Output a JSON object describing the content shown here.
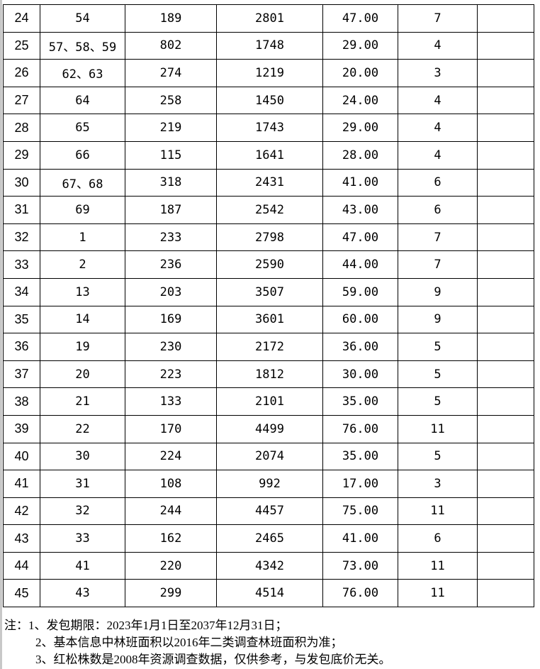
{
  "rows": [
    [
      "24",
      "54",
      "189",
      "2801",
      "47.00",
      "7",
      ""
    ],
    [
      "25",
      "57、58、59",
      "802",
      "1748",
      "29.00",
      "4",
      ""
    ],
    [
      "26",
      "62、63",
      "274",
      "1219",
      "20.00",
      "3",
      ""
    ],
    [
      "27",
      "64",
      "258",
      "1450",
      "24.00",
      "4",
      ""
    ],
    [
      "28",
      "65",
      "219",
      "1743",
      "29.00",
      "4",
      ""
    ],
    [
      "29",
      "66",
      "115",
      "1641",
      "28.00",
      "4",
      ""
    ],
    [
      "30",
      "67、68",
      "318",
      "2431",
      "41.00",
      "6",
      ""
    ],
    [
      "31",
      "69",
      "187",
      "2542",
      "43.00",
      "6",
      ""
    ],
    [
      "32",
      "1",
      "233",
      "2798",
      "47.00",
      "7",
      ""
    ],
    [
      "33",
      "2",
      "236",
      "2590",
      "44.00",
      "7",
      ""
    ],
    [
      "34",
      "13",
      "203",
      "3507",
      "59.00",
      "9",
      ""
    ],
    [
      "35",
      "14",
      "169",
      "3601",
      "60.00",
      "9",
      ""
    ],
    [
      "36",
      "19",
      "230",
      "2172",
      "36.00",
      "5",
      ""
    ],
    [
      "37",
      "20",
      "223",
      "1812",
      "30.00",
      "5",
      ""
    ],
    [
      "38",
      "21",
      "133",
      "2101",
      "35.00",
      "5",
      ""
    ],
    [
      "39",
      "22",
      "170",
      "4499",
      "76.00",
      "11",
      ""
    ],
    [
      "40",
      "30",
      "224",
      "2074",
      "35.00",
      "5",
      ""
    ],
    [
      "41",
      "31",
      "108",
      "992",
      "17.00",
      "3",
      ""
    ],
    [
      "42",
      "32",
      "244",
      "4457",
      "75.00",
      "11",
      ""
    ],
    [
      "43",
      "33",
      "162",
      "2465",
      "41.00",
      "6",
      ""
    ],
    [
      "44",
      "41",
      "220",
      "4342",
      "73.00",
      "11",
      ""
    ],
    [
      "45",
      "43",
      "299",
      "4514",
      "76.00",
      "11",
      ""
    ]
  ],
  "notes": [
    "注：1、发包期限：2023年1月1日至2037年12月31日；",
    "2、基本信息中林班面积以2016年二类调查林班面积为准；",
    "3、红松株数是2008年资源调查数据，仅供参考，与发包底价无关。"
  ]
}
